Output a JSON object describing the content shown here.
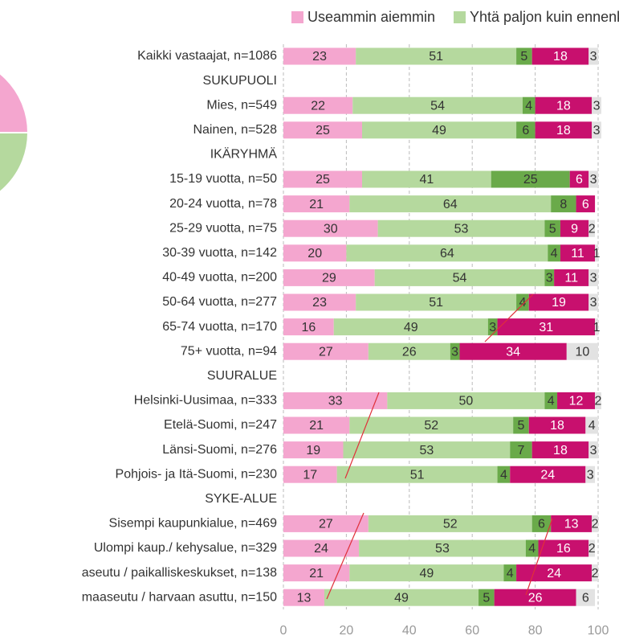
{
  "chart_data": {
    "type": "stacked-barh",
    "categories": [
      "Kaikki vastaajat, n=1086",
      "SUKUPUOLI",
      "Mies, n=549",
      "Nainen, n=528",
      "IKÄRYHMÄ",
      "15-19 vuotta, n=50",
      "20-24 vuotta, n=78",
      "25-29 vuotta, n=75",
      "30-39 vuotta, n=142",
      "40-49 vuotta, n=200",
      "50-64 vuotta, n=277",
      "65-74 vuotta, n=170",
      "75+ vuotta, n=94",
      "SUURALUE",
      "Helsinki-Uusimaa, n=333",
      "Etelä-Suomi, n=247",
      "Länsi-Suomi, n=276",
      "Pohjois- ja Itä-Suomi, n=230",
      "SYKE-ALUE",
      "Sisempi kaupunkialue, n=469",
      "Ulompi kaup./ kehysalue, n=329",
      "aseutu / paikalliskeskukset, n=138",
      "maaseutu / harvaan asuttu, n=150"
    ],
    "series": [
      {
        "name": "Useammin aiemmin",
        "color": "#f4a6cf",
        "values": [
          23,
          null,
          22,
          25,
          null,
          25,
          21,
          30,
          20,
          29,
          23,
          16,
          27,
          null,
          33,
          21,
          19,
          17,
          null,
          27,
          24,
          21,
          13
        ]
      },
      {
        "name": "Yhtä paljon kuin ennenkin",
        "color": "#b5d99e",
        "values": [
          51,
          null,
          54,
          49,
          null,
          41,
          64,
          53,
          64,
          54,
          51,
          49,
          26,
          null,
          50,
          52,
          53,
          51,
          null,
          52,
          53,
          49,
          49
        ]
      },
      {
        "color": "#6aaa4a",
        "values": [
          5,
          null,
          4,
          6,
          null,
          25,
          8,
          5,
          4,
          3,
          4,
          3,
          3,
          null,
          4,
          5,
          7,
          4,
          null,
          6,
          4,
          4,
          5
        ]
      },
      {
        "color": "#c8106e",
        "values": [
          18,
          null,
          18,
          18,
          null,
          6,
          6,
          9,
          11,
          11,
          19,
          31,
          34,
          null,
          12,
          18,
          18,
          24,
          null,
          13,
          16,
          24,
          26
        ]
      },
      {
        "color": "#e2e2e2",
        "values": [
          3,
          null,
          3,
          3,
          null,
          3,
          null,
          2,
          1,
          3,
          3,
          1,
          10,
          null,
          2,
          4,
          3,
          3,
          null,
          2,
          2,
          2,
          6
        ]
      }
    ],
    "xlim": [
      0,
      100
    ],
    "xticks": [
      0,
      20,
      40,
      60,
      80,
      100
    ],
    "grid": true
  }
}
